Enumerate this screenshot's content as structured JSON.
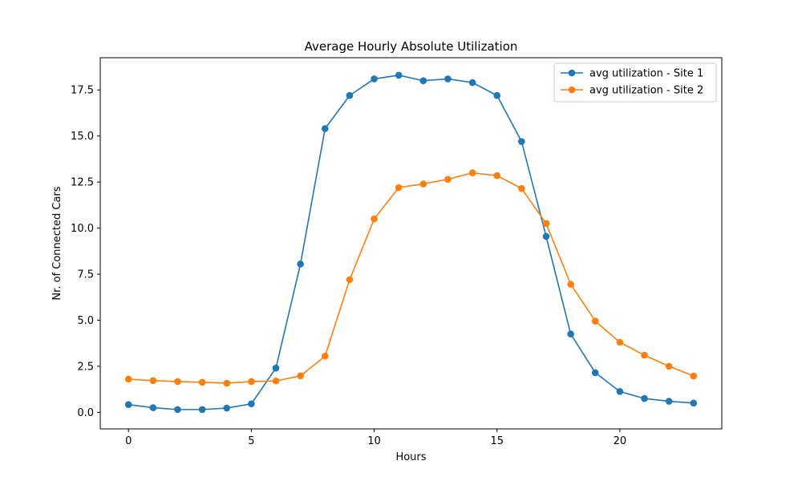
{
  "chart_data": {
    "type": "line",
    "title": "Average Hourly Absolute Utilization",
    "xlabel": "Hours",
    "ylabel": "Nr. of Connected Cars",
    "xlim": [
      -1.15,
      24.15
    ],
    "ylim": [
      -0.9,
      19.25
    ],
    "xticks": [
      0,
      5,
      10,
      15,
      20
    ],
    "xtick_labels": [
      "0",
      "5",
      "10",
      "15",
      "20"
    ],
    "yticks": [
      0,
      2.5,
      5,
      7.5,
      10,
      12.5,
      15,
      17.5
    ],
    "ytick_labels": [
      "0.0",
      "2.5",
      "5.0",
      "7.5",
      "10.0",
      "12.5",
      "15.0",
      "17.5"
    ],
    "grid": false,
    "legend_position": "top-right",
    "x": [
      0,
      1,
      2,
      3,
      4,
      5,
      6,
      7,
      8,
      9,
      10,
      11,
      12,
      13,
      14,
      15,
      16,
      17,
      18,
      19,
      20,
      21,
      22,
      23
    ],
    "series": [
      {
        "name": "avg utilization - Site 1",
        "color": "#1f77b4",
        "values": [
          0.42,
          0.25,
          0.15,
          0.15,
          0.23,
          0.46,
          2.4,
          8.05,
          15.4,
          17.2,
          18.1,
          18.3,
          18.0,
          18.1,
          17.9,
          17.2,
          14.7,
          9.55,
          4.25,
          2.15,
          1.13,
          0.75,
          0.6,
          0.5
        ]
      },
      {
        "name": "avg utilization - Site 2",
        "color": "#ff7f0e",
        "values": [
          1.8,
          1.72,
          1.67,
          1.63,
          1.58,
          1.67,
          1.7,
          1.98,
          3.05,
          7.2,
          10.5,
          12.2,
          12.4,
          12.65,
          13.0,
          12.85,
          12.15,
          10.25,
          6.95,
          4.95,
          3.8,
          3.1,
          2.5,
          1.97
        ]
      }
    ]
  }
}
